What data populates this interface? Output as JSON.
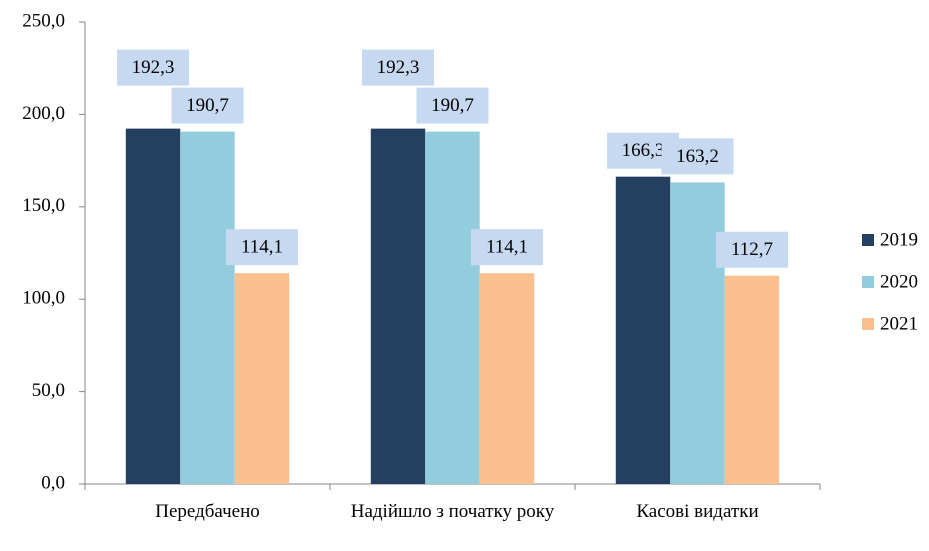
{
  "chart_data": {
    "type": "bar",
    "categories": [
      "Передбачено",
      "Надійшло з початку року",
      "Касові видатки"
    ],
    "series": [
      {
        "name": "2019",
        "color": "#243f60",
        "values": [
          192.3,
          192.3,
          166.3
        ],
        "value_labels": [
          "192,3",
          "192,3",
          "166,3"
        ]
      },
      {
        "name": "2020",
        "color": "#93cddd",
        "values": [
          190.7,
          190.7,
          163.2
        ],
        "value_labels": [
          "190,7",
          "190,7",
          "163,2"
        ]
      },
      {
        "name": "2021",
        "color": "#fac090",
        "values": [
          114.1,
          114.1,
          112.7
        ],
        "value_labels": [
          "114,1",
          "114,1",
          "112,7"
        ]
      }
    ],
    "ylim": [
      0,
      250
    ],
    "yticks": [
      {
        "value": 0,
        "label": "0,0"
      },
      {
        "value": 50,
        "label": "50,0"
      },
      {
        "value": 100,
        "label": "100,0"
      },
      {
        "value": 150,
        "label": "150,0"
      },
      {
        "value": 200,
        "label": "200,0"
      },
      {
        "value": 250,
        "label": "250,0"
      }
    ],
    "legend": "right",
    "grid": false,
    "label_box_color": "#c6d9f1"
  }
}
